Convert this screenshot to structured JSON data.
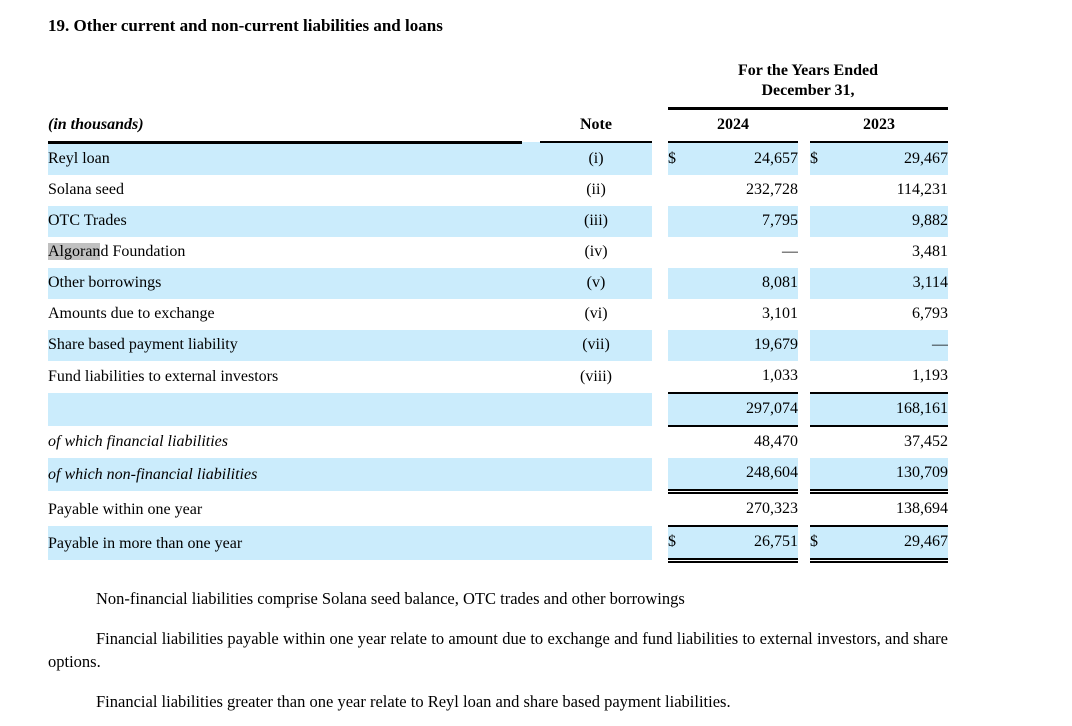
{
  "title": "19. Other current and non-current liabilities and loans",
  "colors": {
    "row_shade": "#cbecfc",
    "text_highlight": "#c0c0c0"
  },
  "table": {
    "units_label": "(in thousands)",
    "period_header": {
      "line1": "For the Years Ended",
      "line2": "December 31,"
    },
    "columns": {
      "note": "Note",
      "year1": "2024",
      "year2": "2023"
    },
    "rows": [
      {
        "label": "Reyl loan",
        "note": "(i)",
        "cur24": "$",
        "val24": "24,657",
        "cur23": "$",
        "val23": "29,467",
        "shade": true,
        "bottom": "none"
      },
      {
        "label": "Solana seed",
        "note": "(ii)",
        "cur24": "",
        "val24": "232,728",
        "cur23": "",
        "val23": "114,231",
        "shade": false,
        "bottom": "none"
      },
      {
        "label": "OTC Trades",
        "note": "(iii)",
        "cur24": "",
        "val24": "7,795",
        "cur23": "",
        "val23": "9,882",
        "shade": true,
        "bottom": "none"
      },
      {
        "label_hl": "Algoran",
        "label": "d Foundation",
        "note": "(iv)",
        "cur24": "",
        "val24": "—",
        "cur23": "",
        "val23": "3,481",
        "shade": false,
        "bottom": "none"
      },
      {
        "label": "Other borrowings",
        "note": "(v)",
        "cur24": "",
        "val24": "8,081",
        "cur23": "",
        "val23": "3,114",
        "shade": true,
        "bottom": "none"
      },
      {
        "label": "Amounts due to exchange",
        "note": "(vi)",
        "cur24": "",
        "val24": "3,101",
        "cur23": "",
        "val23": "6,793",
        "shade": false,
        "bottom": "none"
      },
      {
        "label": "Share based payment liability",
        "note": "(vii)",
        "cur24": "",
        "val24": "19,679",
        "cur23": "",
        "val23": "—",
        "shade": true,
        "bottom": "none"
      },
      {
        "label": "Fund liabilities to external investors",
        "note": "(viii)",
        "cur24": "",
        "val24": "1,033",
        "cur23": "",
        "val23": "1,193",
        "shade": false,
        "bottom": "single"
      },
      {
        "label": "",
        "note": "",
        "cur24": "",
        "val24": "297,074",
        "cur23": "",
        "val23": "168,161",
        "shade": true,
        "bottom": "single"
      },
      {
        "label": "of which financial liabilities",
        "italic": true,
        "note": "",
        "cur24": "",
        "val24": "48,470",
        "cur23": "",
        "val23": "37,452",
        "shade": false,
        "bottom": "none"
      },
      {
        "label": "of which non-financial liabilities",
        "italic": true,
        "note": "",
        "cur24": "",
        "val24": "248,604",
        "cur23": "",
        "val23": "130,709",
        "shade": true,
        "bottom": "double"
      },
      {
        "label": "Payable within one year",
        "note": "",
        "cur24": "",
        "val24": "270,323",
        "cur23": "",
        "val23": "138,694",
        "shade": false,
        "bottom": "single"
      },
      {
        "label": "Payable in more than one year",
        "note": "",
        "cur24": "$",
        "val24": "26,751",
        "cur23": "$",
        "val23": "29,467",
        "shade": true,
        "bottom": "double"
      }
    ]
  },
  "notes": [
    "Non-financial liabilities comprise Solana seed balance, OTC trades and other borrowings",
    "Financial liabilities payable within one year relate to amount due to exchange and fund liabilities to external investors, and share options.",
    "Financial liabilities greater than one year relate to Reyl loan and share based payment liabilities."
  ]
}
